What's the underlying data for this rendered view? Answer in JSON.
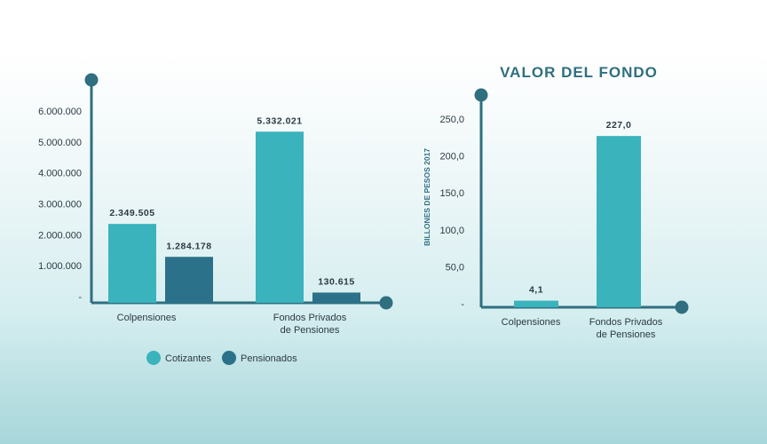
{
  "colors": {
    "cotizantes": "#3ab3bd",
    "pensionados": "#2a7189",
    "axis": "#2f6f7f",
    "text": "#2b3a42",
    "title": "#2f6f7f"
  },
  "chart_data": [
    {
      "type": "bar",
      "title": "",
      "xlabel": "",
      "ylabel": "",
      "categories": [
        "Colpensiones",
        "Fondos Privados de Pensiones"
      ],
      "category_lines": [
        [
          "Colpensiones"
        ],
        [
          "Fondos Privados",
          "de Pensiones"
        ]
      ],
      "series": [
        {
          "name": "Cotizantes",
          "values": [
            2349505,
            5332021
          ],
          "labels": [
            "2.349.505",
            "5.332.021"
          ]
        },
        {
          "name": "Pensionados",
          "values": [
            1284178,
            130615
          ],
          "labels": [
            "1.284.178",
            "130.615"
          ]
        }
      ],
      "ylim": [
        0,
        6000000
      ],
      "yticks": [
        {
          "value": 0,
          "label": "-"
        },
        {
          "value": 1000000,
          "label": "1.000.000"
        },
        {
          "value": 2000000,
          "label": "2.000.000"
        },
        {
          "value": 3000000,
          "label": "3.000.000"
        },
        {
          "value": 4000000,
          "label": "4.000.000"
        },
        {
          "value": 5000000,
          "label": "5.000.000"
        },
        {
          "value": 6000000,
          "label": "6.000.000"
        }
      ],
      "legend": {
        "placement": "bottom",
        "items": [
          "Cotizantes",
          "Pensionados"
        ]
      },
      "grid": false
    },
    {
      "type": "bar",
      "title": "VALOR DEL FONDO",
      "xlabel": "",
      "ylabel": "BILLONES DE PESOS 2017",
      "categories": [
        "Colpensiones",
        "Fondos Privados de Pensiones"
      ],
      "category_lines": [
        [
          "Colpensiones"
        ],
        [
          "Fondos Privados",
          "de Pensiones"
        ]
      ],
      "series": [
        {
          "values": [
            4.1,
            227.0
          ],
          "labels": [
            "4,1",
            "227,0"
          ]
        }
      ],
      "ylim": [
        0,
        250
      ],
      "yticks": [
        {
          "value": 0,
          "label": "-"
        },
        {
          "value": 50,
          "label": "50,0"
        },
        {
          "value": 100,
          "label": "100,0"
        },
        {
          "value": 150,
          "label": "150,0"
        },
        {
          "value": 200,
          "label": "200,0"
        },
        {
          "value": 250,
          "label": "250,0"
        }
      ],
      "grid": false
    }
  ]
}
